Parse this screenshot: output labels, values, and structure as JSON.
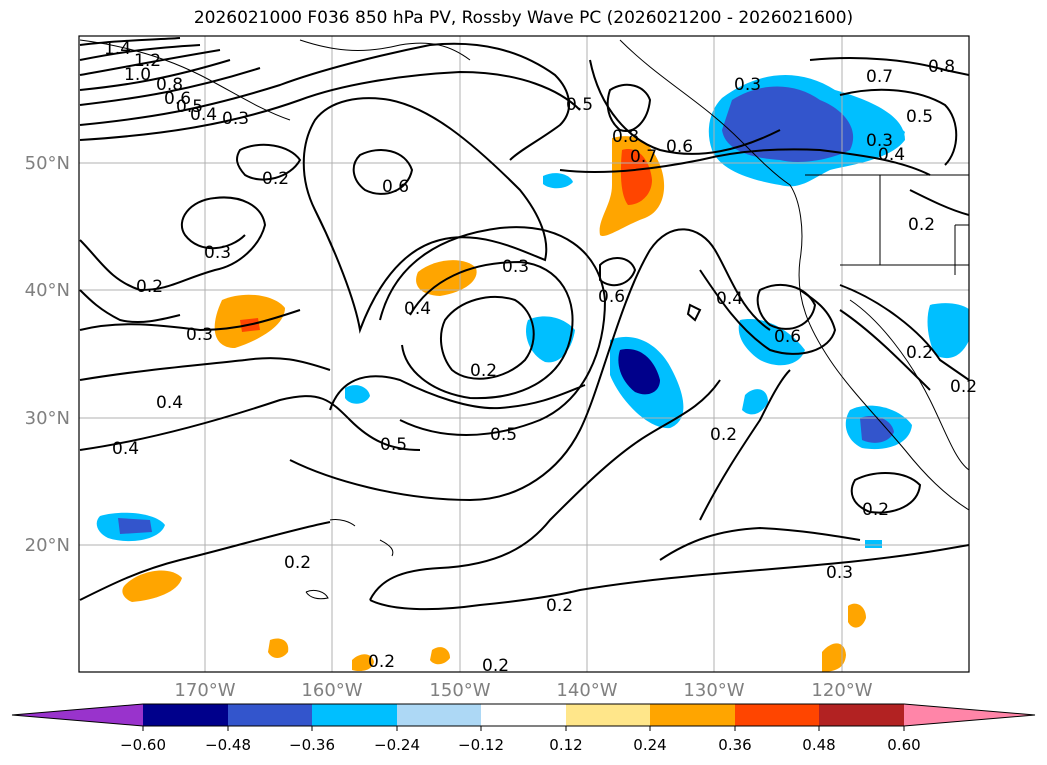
{
  "title": "2026021000 F036 850 hPa PV, Rossby Wave PC (2026021200 - 2026021600)",
  "map": {
    "lat_labels": [
      "50°N",
      "40°N",
      "30°N",
      "20°N"
    ],
    "lon_labels": [
      "170°W",
      "160°W",
      "150°W",
      "140°W",
      "130°W",
      "120°W"
    ],
    "contour_labels": [
      "1.4",
      "1.2",
      "1.0",
      "0.8",
      "0.6",
      "0.5",
      "0.4",
      "0.3",
      "0.2",
      "0.3",
      "0.6",
      "0.5",
      "0.4",
      "0.7",
      "0.8",
      "0.7",
      "0.8",
      "0.6",
      "0.5",
      "0.3",
      "0.4",
      "0.2",
      "0.3",
      "0.2",
      "0.4",
      "0.3",
      "0.6",
      "0.3",
      "0.2",
      "0.4",
      "0.5",
      "0.5",
      "0.2",
      "0.4",
      "0.6",
      "0.2",
      "0.2",
      "0.2",
      "0.3",
      "0.2",
      "0.2",
      "0.2",
      "0.2"
    ]
  },
  "colorbar": {
    "colors": [
      "#9933cc",
      "#00008b",
      "#3355cc",
      "#00bfff",
      "#add8f5",
      "#ffffff",
      "#ffe68a",
      "#ffa500",
      "#ff4500",
      "#b22222",
      "#ff85a8"
    ],
    "tick_labels": [
      "−0.60",
      "−0.48",
      "−0.36",
      "−0.24",
      "−0.12",
      "0.12",
      "0.24",
      "0.36",
      "0.48",
      "0.60"
    ]
  }
}
